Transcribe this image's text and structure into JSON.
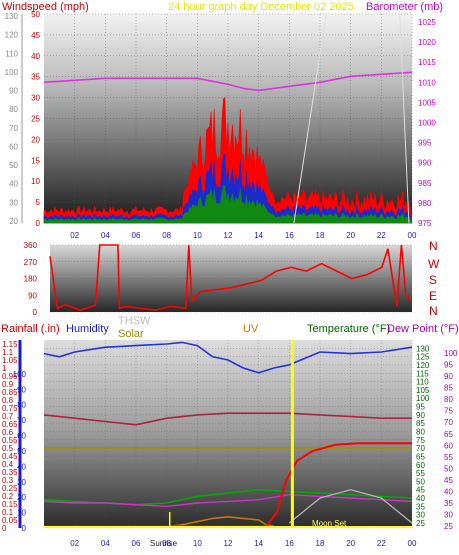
{
  "header": {
    "left_label": "Windspeed (mph)",
    "center_label": "24 hour graph day   December 02 2025",
    "right_label": "Barometer (mb)"
  },
  "bottom_header": {
    "rainfall": "Rainfall (.in)",
    "humidity": "Humidity",
    "thsw": "THSW",
    "solar": "Solar",
    "uv": "UV",
    "temperature": "Temperature (°F)",
    "dewpoint": "Dew Point (°F)"
  },
  "compass": [
    "N",
    "W",
    "S",
    "E",
    "N"
  ],
  "annotations": {
    "sunrise": "Sunrise",
    "moonset": "Moon Set"
  },
  "colors": {
    "windspeed": "#ff0000",
    "barometer": "#dd33dd",
    "direction": "#ff0000",
    "humidity": "#2233dd",
    "solar": "#a09000",
    "thsw": "#999999",
    "uv": "#cc7700",
    "temperature": "#00aa00",
    "dewpoint": "#cc33cc",
    "rain": "#ff0000",
    "heat": "#aa2244"
  },
  "chart_data": [
    {
      "type": "line",
      "name": "wind",
      "x_ticks": [
        "02",
        "04",
        "06",
        "08",
        "10",
        "12",
        "14",
        "16",
        "18",
        "20",
        "22",
        "00"
      ],
      "y_left_ticks": [
        "0",
        "5",
        "10",
        "15",
        "20",
        "25",
        "30",
        "35",
        "40",
        "45",
        "50"
      ],
      "y_left_range": [
        0,
        50
      ],
      "y_outer_ticks": [
        "20",
        "30",
        "40",
        "50",
        "60",
        "70",
        "80",
        "90",
        "100",
        "110",
        "120",
        "130"
      ],
      "y_right_ticks": [
        "975",
        "980",
        "985",
        "990",
        "995",
        "1000",
        "1005",
        "1010",
        "1015",
        "1020",
        "1025"
      ],
      "y_right_range": [
        975,
        1027
      ],
      "barometer_x": [
        0,
        2,
        4,
        6,
        8,
        10,
        12,
        13,
        14,
        15,
        16,
        18,
        20,
        22,
        24
      ],
      "barometer": [
        1010,
        1010.5,
        1011,
        1011,
        1011,
        1011,
        1009.5,
        1008.5,
        1008,
        1008.5,
        1009,
        1010,
        1011.5,
        1012,
        1012.5
      ]
    },
    {
      "type": "line",
      "name": "wind_direction",
      "y_ticks": [
        "0",
        "90",
        "180",
        "270",
        "360"
      ],
      "y_range": [
        0,
        360
      ]
    },
    {
      "type": "line",
      "name": "conditions",
      "x_ticks": [
        "02",
        "04",
        "06",
        "08",
        "10",
        "12",
        "14",
        "16",
        "18",
        "20",
        "22",
        "00"
      ],
      "rain_ticks": [
        "0",
        "0.05",
        "0.1",
        "0.15",
        "0.2",
        "0.25",
        "0.3",
        "0.35",
        "0.4",
        "0.45",
        "0.5",
        "0.55",
        "0.6",
        "0.65",
        "0.7",
        "0.75",
        "0.8",
        "0.85",
        "0.9",
        "0.95",
        "1",
        "1.05",
        "1.1",
        "1.15"
      ],
      "rain_range": [
        0,
        1.175
      ],
      "humidity_ticks": [
        "0",
        "10",
        "20",
        "30",
        "40",
        "50",
        "60",
        "70",
        "80",
        "90",
        "100"
      ],
      "temp_ticks": [
        "25",
        "30",
        "35",
        "40",
        "45",
        "50",
        "55",
        "60",
        "65",
        "70",
        "75",
        "80",
        "85",
        "90",
        "95",
        "100",
        "105",
        "110",
        "115",
        "120",
        "125",
        "130"
      ],
      "dew_ticks": [
        "25",
        "30",
        "35",
        "40",
        "45",
        "50",
        "55",
        "60",
        "65",
        "70",
        "75",
        "80",
        "85",
        "90",
        "95",
        "100"
      ],
      "temp_range": [
        22,
        135
      ],
      "humidity_x": [
        0,
        1,
        2,
        4,
        6,
        8,
        9,
        10,
        11,
        12,
        13,
        14,
        15,
        16,
        18,
        20,
        22,
        24
      ],
      "humidity": [
        1.09,
        1.07,
        1.1,
        1.13,
        1.14,
        1.15,
        1.16,
        1.14,
        1.07,
        1.05,
        1.0,
        0.97,
        1.0,
        1.02,
        1.1,
        1.09,
        1.1,
        1.13
      ],
      "temperature_x": [
        0,
        2,
        4,
        6,
        8,
        10,
        12,
        14,
        16,
        18,
        20,
        22,
        24
      ],
      "temperature": [
        39,
        38,
        37,
        36,
        37,
        41,
        43,
        45,
        44,
        43,
        42,
        41,
        40
      ],
      "dewpoint_x": [
        0,
        2,
        4,
        6,
        8,
        10,
        12,
        14,
        16,
        18,
        20,
        22,
        24
      ],
      "dewpoint": [
        38,
        37,
        37,
        36,
        35,
        37,
        38,
        39,
        42,
        41,
        40,
        39,
        38
      ],
      "heat_x": [
        0,
        2,
        4,
        6,
        8,
        10,
        12,
        14,
        16,
        18,
        20,
        22,
        24
      ],
      "heat": [
        90,
        88,
        86,
        84,
        88,
        90,
        91,
        91,
        91,
        90,
        89,
        88,
        88
      ],
      "solar_x": [
        0,
        24
      ],
      "solar": [
        0.5,
        0.5
      ],
      "rain_x": [
        0,
        14.5,
        15.2,
        15.8,
        16.5,
        17.5,
        19,
        20.5,
        22,
        24
      ],
      "rain": [
        0.01,
        0.01,
        0.1,
        0.3,
        0.42,
        0.48,
        0.52,
        0.53,
        0.53,
        0.53
      ],
      "thsw_x": [
        16,
        18,
        20,
        22,
        24
      ],
      "thsw": [
        25,
        40,
        45,
        40,
        25
      ],
      "uv_x": [
        8,
        9,
        10,
        11,
        12,
        13,
        14,
        14.5,
        15
      ],
      "uv": [
        0.01,
        0.02,
        0.04,
        0.06,
        0.07,
        0.06,
        0.05,
        0.02,
        0.01
      ]
    }
  ]
}
